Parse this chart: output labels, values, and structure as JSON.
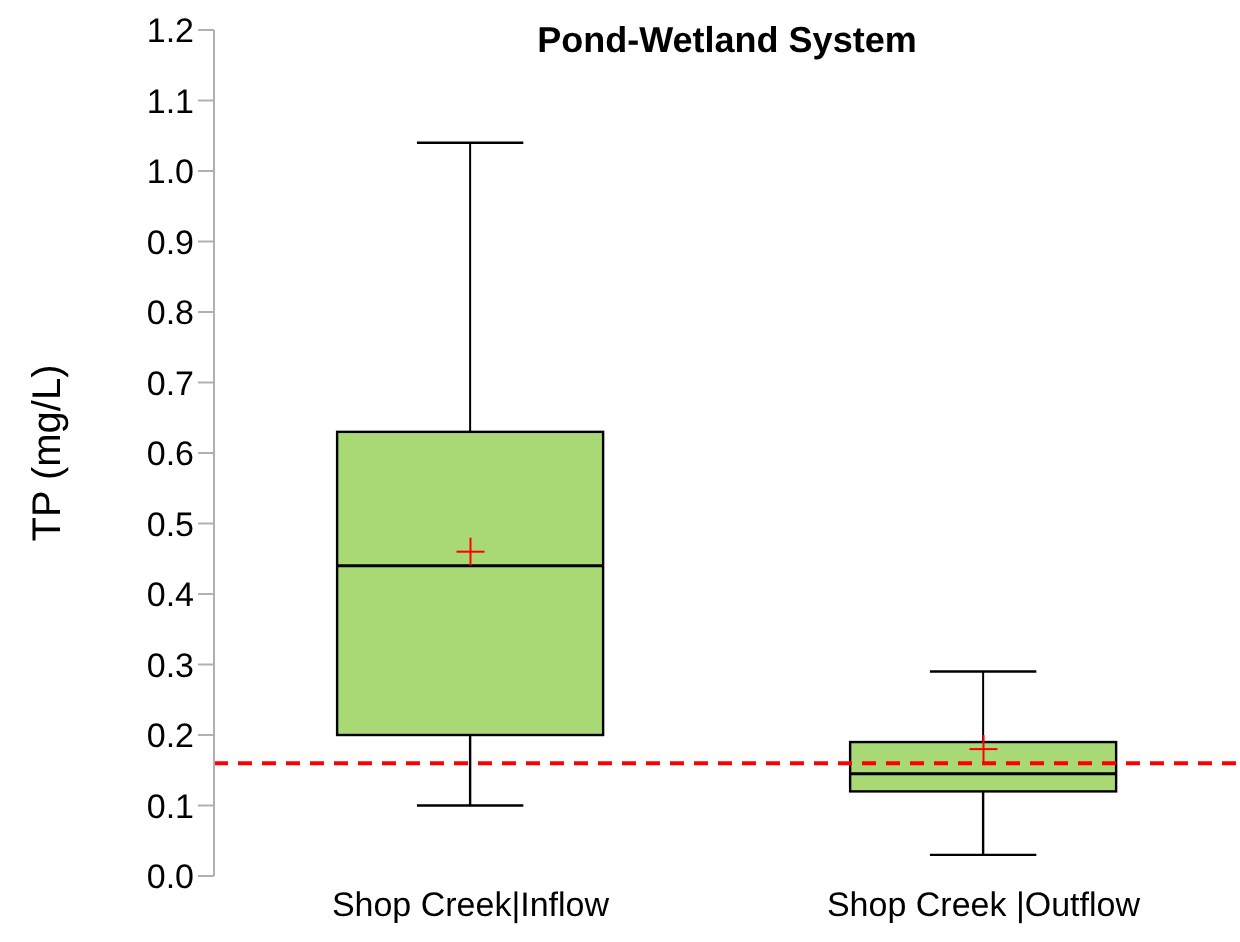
{
  "chart_data": {
    "type": "box",
    "title": "Pond-Wetland System",
    "ylabel": "TP (mg/L)",
    "categories": [
      "Shop Creek|Inflow",
      "Shop Creek |Outflow"
    ],
    "color": "#a9d974",
    "boxes": [
      {
        "low": 0.1,
        "q1": 0.2,
        "median": 0.44,
        "q3": 0.63,
        "high": 1.04,
        "mean": 0.46
      },
      {
        "low": 0.03,
        "q1": 0.12,
        "median": 0.145,
        "q3": 0.19,
        "high": 0.29,
        "mean": 0.18
      }
    ],
    "marker": "cross",
    "ylim": [
      0,
      1.2
    ],
    "yticks": [
      {
        "value": 0,
        "label": "0.0"
      },
      0.1,
      0.2,
      0.3,
      0.4,
      0.5,
      0.6,
      0.7,
      0.8,
      0.9,
      {
        "value": 1,
        "label": "1.0"
      },
      1.1,
      1.2
    ],
    "ref_lines": [
      {
        "axis": "y",
        "value": 0.16,
        "color": "#ff0000",
        "line_style": "dashed"
      }
    ]
  }
}
